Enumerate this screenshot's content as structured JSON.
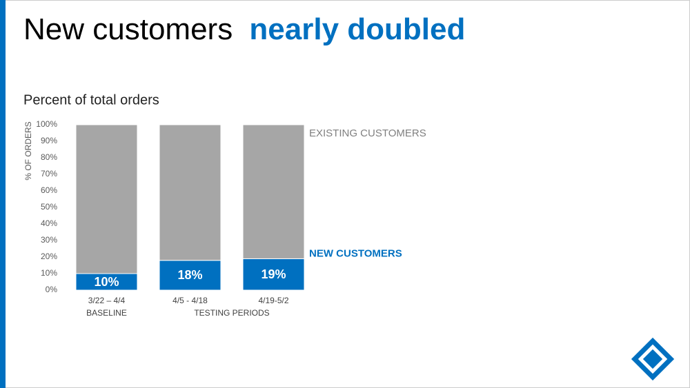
{
  "slide": {
    "title_plain": "New customers",
    "title_emphasis": "nearly doubled"
  },
  "chart_data": {
    "type": "stacked_bar",
    "subtitle": "Percent of total orders",
    "y_label": "% OF ORDERS",
    "categories": [
      "3/22 – 4/4",
      "4/5 - 4/18",
      "4/19-5/2"
    ],
    "category_groups": [
      "BASELINE",
      "TESTING PERIODS"
    ],
    "series": [
      {
        "name": "NEW CUSTOMERS",
        "color": "#0070c0",
        "values": [
          10,
          18,
          19
        ],
        "value_labels": [
          "10%",
          "18%",
          "19%"
        ]
      },
      {
        "name": "EXISTING CUSTOMERS",
        "color": "#a6a6a6",
        "values": [
          90,
          82,
          81
        ]
      }
    ],
    "ylim": [
      0,
      100
    ],
    "yticks": [
      {
        "value": 0,
        "label": "0%"
      },
      {
        "value": 10,
        "label": "10%"
      },
      {
        "value": 20,
        "label": "20%"
      },
      {
        "value": 30,
        "label": "30%"
      },
      {
        "value": 40,
        "label": "40%"
      },
      {
        "value": 50,
        "label": "50%"
      },
      {
        "value": 60,
        "label": "60%"
      },
      {
        "value": 70,
        "label": "70%"
      },
      {
        "value": 80,
        "label": "80%"
      },
      {
        "value": 90,
        "label": "90%"
      },
      {
        "value": 100,
        "label": "100%"
      }
    ]
  }
}
